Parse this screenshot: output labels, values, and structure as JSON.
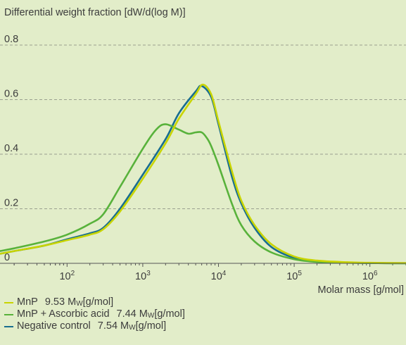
{
  "chart_data": {
    "type": "line",
    "ylabel": "Differential weight fraction [dW/d(log M)]",
    "xlabel": "Molar mass [g/mol]",
    "x_scale": "log",
    "xlim": [
      13,
      3000000
    ],
    "ylim": [
      0,
      0.8
    ],
    "yticks": [
      "0",
      "0.2",
      "0.4",
      "0.6",
      "0.8"
    ],
    "xticks": [
      {
        "value": 100,
        "base": "10",
        "exp": "2"
      },
      {
        "value": 1000,
        "base": "10",
        "exp": "3"
      },
      {
        "value": 10000,
        "base": "10",
        "exp": "4"
      },
      {
        "value": 100000,
        "base": "10",
        "exp": "5"
      },
      {
        "value": 1000000,
        "base": "10",
        "exp": "6"
      }
    ],
    "grid": "horizontal dashed",
    "series": [
      {
        "name": "MnP",
        "color": "#c8d400",
        "x": [
          13,
          20,
          50,
          100,
          200,
          300,
          500,
          1000,
          2000,
          3000,
          5000,
          6200,
          8000,
          10000,
          15000,
          20000,
          30000,
          50000,
          100000,
          200000,
          500000,
          1000000,
          3000000
        ],
        "y": [
          0.035,
          0.045,
          0.065,
          0.085,
          0.105,
          0.125,
          0.19,
          0.31,
          0.44,
          0.53,
          0.62,
          0.655,
          0.62,
          0.52,
          0.34,
          0.23,
          0.14,
          0.07,
          0.025,
          0.01,
          0.004,
          0.002,
          0.001
        ]
      },
      {
        "name": "MnP + Ascorbic acid",
        "color": "#58b23b",
        "x": [
          13,
          20,
          50,
          100,
          200,
          300,
          500,
          1000,
          1500,
          2000,
          3000,
          4000,
          5000,
          6000,
          7000,
          8000,
          10000,
          15000,
          20000,
          30000,
          50000,
          100000,
          200000,
          500000,
          1000000,
          3000000
        ],
        "y": [
          0.045,
          0.055,
          0.08,
          0.105,
          0.145,
          0.18,
          0.28,
          0.42,
          0.49,
          0.51,
          0.49,
          0.475,
          0.48,
          0.48,
          0.46,
          0.43,
          0.36,
          0.22,
          0.14,
          0.08,
          0.04,
          0.015,
          0.005,
          0.002,
          0.001,
          0.0
        ]
      },
      {
        "name": "Negative control",
        "color": "#186e8f",
        "x": [
          13,
          20,
          50,
          100,
          200,
          300,
          500,
          1000,
          2000,
          3000,
          5000,
          6000,
          8000,
          10000,
          15000,
          20000,
          30000,
          50000,
          100000,
          200000,
          500000,
          1000000,
          3000000
        ],
        "y": [
          0.035,
          0.045,
          0.065,
          0.088,
          0.11,
          0.13,
          0.2,
          0.325,
          0.455,
          0.55,
          0.63,
          0.65,
          0.61,
          0.51,
          0.32,
          0.22,
          0.13,
          0.06,
          0.02,
          0.008,
          0.003,
          0.001,
          0.0
        ]
      }
    ],
    "legend": {
      "position": "bottom-left",
      "items": [
        {
          "label": "MnP",
          "mw_value": "9.53",
          "mw_prefix": "M",
          "mw_sub": "W",
          "mw_unit": "[g/mol]",
          "color": "#c8d400"
        },
        {
          "label": "MnP + Ascorbic acid",
          "mw_value": "7.44",
          "mw_prefix": "M",
          "mw_sub": "W",
          "mw_unit": "[g/mol]",
          "color": "#58b23b"
        },
        {
          "label": "Negative control",
          "mw_value": "7.54",
          "mw_prefix": "M",
          "mw_sub": "W",
          "mw_unit": "[g/mol]",
          "color": "#186e8f"
        }
      ]
    }
  }
}
